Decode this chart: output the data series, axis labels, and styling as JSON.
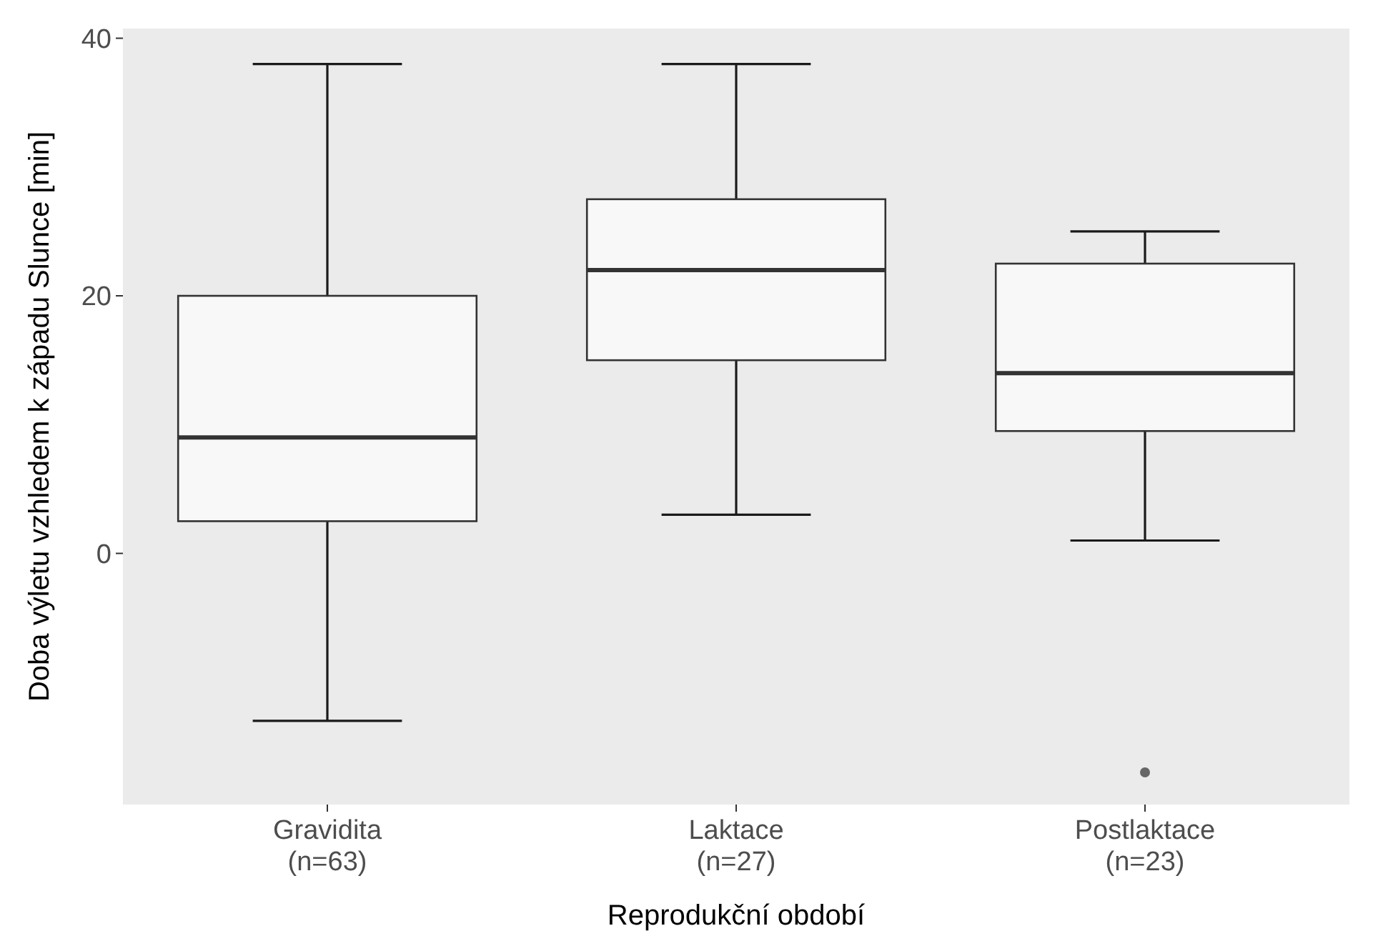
{
  "chart_data": {
    "type": "box",
    "xlabel": "Reprodukční období",
    "ylabel": "Doba výletu vzhledem k západu Slunce [min]",
    "categories": [
      "Gravidita\n(n=63)",
      "Laktace\n(n=27)",
      "Postlaktace\n(n=23)"
    ],
    "boxes": [
      {
        "low": -13,
        "q1": 2.5,
        "median": 9,
        "q3": 20,
        "high": 38
      },
      {
        "low": 3,
        "q1": 15,
        "median": 22,
        "q3": 27.5,
        "high": 38
      },
      {
        "low": 1,
        "q1": 9.5,
        "median": 14,
        "q3": 22.5,
        "high": 25,
        "outliers": [
          -17
        ]
      }
    ],
    "color": "#f8f8f8",
    "ylim": [
      -19.5,
      40.75
    ],
    "yticks": [
      0,
      20,
      40
    ],
    "grid": false
  }
}
